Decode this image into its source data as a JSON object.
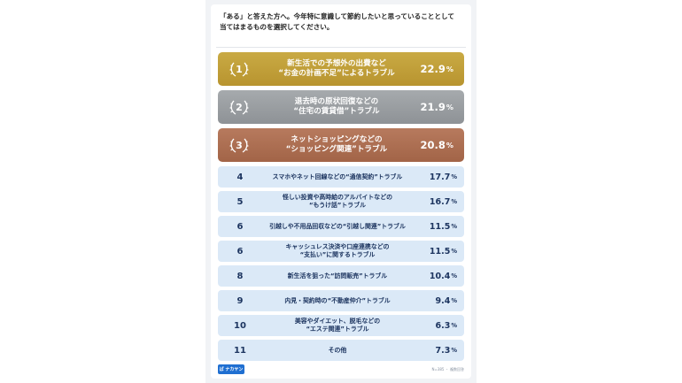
{
  "question": {
    "line1": "「ある」と答えた方へ。今年特に意識して節約したいと思っていることとして",
    "line2": "当てはまるものを選択してください。"
  },
  "colors": {
    "gold": "#b8942f",
    "silver": "#8e9296",
    "bronze": "#a26447",
    "row_bg": "#dbe9f7",
    "row_text": "#1d3560"
  },
  "chart_data": {
    "type": "table",
    "unit": "%",
    "rows": [
      {
        "rank": "1",
        "line1": "新生活での予想外の出費など",
        "line2": "“お金の計画不足”によるトラブル",
        "value": "22.9"
      },
      {
        "rank": "2",
        "line1": "退去時の原状回復などの",
        "line2": "“住宅の賃貸借”トラブル",
        "value": "21.9"
      },
      {
        "rank": "3",
        "line1": "ネットショッピングなどの",
        "line2": "“ショッピング関連”トラブル",
        "value": "20.8"
      },
      {
        "rank": "4",
        "line1": "スマホやネット回線などの“通信契約”トラブル",
        "line2": "",
        "value": "17.7"
      },
      {
        "rank": "5",
        "line1": "怪しい投資や高時給のアルバイトなどの",
        "line2": "“もうけ話”トラブル",
        "value": "16.7"
      },
      {
        "rank": "6",
        "line1": "引越しや不用品回収などの“引越し関連”トラブル",
        "line2": "",
        "value": "11.5"
      },
      {
        "rank": "6",
        "line1": "キャッシュレス決済や口座連携などの",
        "line2": "“支払い”に関するトラブル",
        "value": "11.5"
      },
      {
        "rank": "8",
        "line1": "新生活を狙った“訪問販売”トラブル",
        "line2": "",
        "value": "10.4"
      },
      {
        "rank": "9",
        "line1": "内見・契約時の“不動産仲介”トラブル",
        "line2": "",
        "value": "9.4"
      },
      {
        "rank": "10",
        "line1": "美容やダイエット、脱毛などの",
        "line2": "“エステ関連”トラブル",
        "value": "6.3"
      },
      {
        "rank": "11",
        "line1": "その他",
        "line2": "",
        "value": "7.3"
      }
    ]
  },
  "footer": {
    "logo_text": "ぱ ナカヤン",
    "source": "N=385 ・ 複数回答"
  }
}
